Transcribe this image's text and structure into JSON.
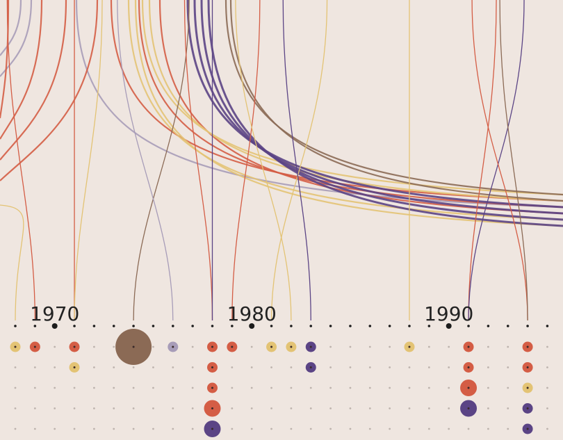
{
  "colors": {
    "background": "#efe6e0",
    "red": "#d45d45",
    "yellow": "#e3c374",
    "purple": "#5b4485",
    "lavender": "#a79cb8",
    "brown": "#8b6a55",
    "axis_dot": "#1c1c1c",
    "grid_dot": "#bdb3ad",
    "center_dot": "#3a2a2a"
  },
  "chart_data": {
    "type": "scatter",
    "title": "",
    "x_start_year": 1968,
    "x_end_year": 1996,
    "year_ticks": [
      "1970",
      "1980",
      "1990"
    ],
    "rows": 5,
    "points": [
      {
        "year": 1968,
        "row": 0,
        "color": "yellow",
        "size": 1
      },
      {
        "year": 1969,
        "row": 0,
        "color": "red",
        "size": 1
      },
      {
        "year": 1971,
        "row": 0,
        "color": "red",
        "size": 1
      },
      {
        "year": 1971,
        "row": 1,
        "color": "yellow",
        "size": 1
      },
      {
        "year": 1974,
        "row": 0,
        "color": "brown",
        "size": 4
      },
      {
        "year": 1976,
        "row": 0,
        "color": "lavender",
        "size": 1
      },
      {
        "year": 1978,
        "row": 0,
        "color": "red",
        "size": 1
      },
      {
        "year": 1978,
        "row": 1,
        "color": "red",
        "size": 1
      },
      {
        "year": 1978,
        "row": 2,
        "color": "red",
        "size": 1
      },
      {
        "year": 1978,
        "row": 3,
        "color": "red",
        "size": 2
      },
      {
        "year": 1978,
        "row": 4,
        "color": "purple",
        "size": 2
      },
      {
        "year": 1979,
        "row": 0,
        "color": "red",
        "size": 1
      },
      {
        "year": 1981,
        "row": 0,
        "color": "yellow",
        "size": 1
      },
      {
        "year": 1982,
        "row": 0,
        "color": "yellow",
        "size": 1
      },
      {
        "year": 1983,
        "row": 0,
        "color": "purple",
        "size": 1
      },
      {
        "year": 1983,
        "row": 1,
        "color": "purple",
        "size": 1
      },
      {
        "year": 1988,
        "row": 0,
        "color": "yellow",
        "size": 1
      },
      {
        "year": 1991,
        "row": 0,
        "color": "red",
        "size": 1
      },
      {
        "year": 1991,
        "row": 1,
        "color": "red",
        "size": 1
      },
      {
        "year": 1991,
        "row": 2,
        "color": "red",
        "size": 2
      },
      {
        "year": 1991,
        "row": 3,
        "color": "purple",
        "size": 2
      },
      {
        "year": 1994,
        "row": 0,
        "color": "red",
        "size": 1
      },
      {
        "year": 1994,
        "row": 1,
        "color": "red",
        "size": 1
      },
      {
        "year": 1994,
        "row": 2,
        "color": "yellow",
        "size": 1
      },
      {
        "year": 1994,
        "row": 3,
        "color": "purple",
        "size": 1
      },
      {
        "year": 1994,
        "row": 4,
        "color": "purple",
        "size": 1
      }
    ],
    "flows": [
      {
        "year": 1968,
        "color": "yellow",
        "exit": "left"
      },
      {
        "year": 1969,
        "color": "red",
        "exit": "top"
      },
      {
        "year": 1971,
        "color": "red",
        "exit": "top"
      },
      {
        "year": 1971,
        "color": "yellow",
        "exit": "top"
      },
      {
        "year": 1974,
        "color": "brown",
        "exit": "top"
      },
      {
        "year": 1976,
        "color": "lavender",
        "exit": "top"
      },
      {
        "year": 1978,
        "color": "red",
        "exit": "top"
      },
      {
        "year": 1978,
        "color": "purple",
        "exit": "top"
      },
      {
        "year": 1979,
        "color": "red",
        "exit": "top"
      },
      {
        "year": 1981,
        "color": "yellow",
        "exit": "top"
      },
      {
        "year": 1982,
        "color": "yellow",
        "exit": "top"
      },
      {
        "year": 1983,
        "color": "purple",
        "exit": "top"
      },
      {
        "year": 1988,
        "color": "yellow",
        "exit": "top"
      },
      {
        "year": 1991,
        "color": "red",
        "exit": "top"
      },
      {
        "year": 1991,
        "color": "purple",
        "exit": "top"
      },
      {
        "year": 1994,
        "color": "red",
        "exit": "top"
      },
      {
        "year": 1994,
        "color": "brown",
        "exit": "top"
      }
    ],
    "background_curves": [
      {
        "color": "lavender",
        "from": "top",
        "to": "left"
      },
      {
        "color": "lavender",
        "from": "top",
        "to": "left"
      },
      {
        "color": "lavender",
        "from": "top",
        "to": "right"
      },
      {
        "color": "red",
        "from": "top",
        "to": "left"
      },
      {
        "color": "red",
        "from": "top",
        "to": "left"
      },
      {
        "color": "red",
        "from": "top",
        "to": "left"
      },
      {
        "color": "red",
        "from": "top",
        "to": "left"
      },
      {
        "color": "red",
        "from": "top",
        "to": "right"
      },
      {
        "color": "red",
        "from": "top",
        "to": "right"
      },
      {
        "color": "red",
        "from": "top",
        "to": "right"
      },
      {
        "color": "yellow",
        "from": "top",
        "to": "right"
      },
      {
        "color": "yellow",
        "from": "top",
        "to": "right"
      },
      {
        "color": "yellow",
        "from": "top",
        "to": "right"
      },
      {
        "color": "yellow",
        "from": "top",
        "to": "right"
      },
      {
        "color": "purple",
        "from": "top",
        "to": "right"
      },
      {
        "color": "purple",
        "from": "top",
        "to": "right"
      },
      {
        "color": "purple",
        "from": "top",
        "to": "right"
      },
      {
        "color": "purple",
        "from": "top",
        "to": "right"
      },
      {
        "color": "brown",
        "from": "top",
        "to": "right"
      },
      {
        "color": "brown",
        "from": "top",
        "to": "right"
      }
    ]
  }
}
